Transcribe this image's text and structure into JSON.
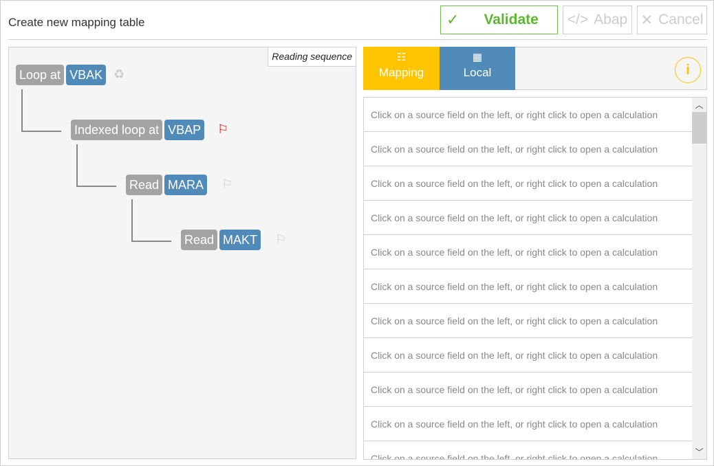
{
  "header": {
    "title": "Create new mapping table",
    "validate": "Validate",
    "abap": "Abap",
    "cancel": "Cancel"
  },
  "left": {
    "reading_sequence": "Reading sequence",
    "nodes": [
      {
        "op": "Loop at",
        "table": "VBAK",
        "icon": "recycle-icon"
      },
      {
        "op": "Indexed loop at",
        "table": "VBAP",
        "icon": "flag-icon",
        "flag_color": "#e00000"
      },
      {
        "op": "Read",
        "table": "MARA",
        "icon": "flag-icon"
      },
      {
        "op": "Read",
        "table": "MAKT",
        "icon": "flag-icon"
      }
    ]
  },
  "tabs": [
    {
      "label": "Mapping",
      "icon": "tree-list-icon",
      "color": "#ffc400"
    },
    {
      "label": "Local",
      "icon": "calculator-icon",
      "color": "#4f8ab8"
    }
  ],
  "info_icon": "i",
  "rows": [
    "Click on a source field on the left, or right click to open a calculation",
    "Click on a source field on the left, or right click to open a calculation",
    "Click on a source field on the left, or right click to open a calculation",
    "Click on a source field on the left, or right click to open a calculation",
    "Click on a source field on the left, or right click to open a calculation",
    "Click on a source field on the left, or right click to open a calculation",
    "Click on a source field on the left, or right click to open a calculation",
    "Click on a source field on the left, or right click to open a calculation",
    "Click on a source field on the left, or right click to open a calculation",
    "Click on a source field on the left, or right click to open a calculation",
    "Click on a source field on the left, or right click to open a calculation"
  ]
}
